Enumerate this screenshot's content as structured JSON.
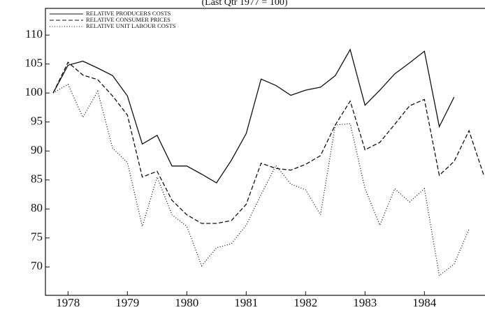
{
  "chart_data": {
    "type": "line",
    "title": "(Last Qtr 1977 = 100)",
    "x": [
      1977.75,
      1978.0,
      1978.25,
      1978.5,
      1978.75,
      1979.0,
      1979.25,
      1979.5,
      1979.75,
      1980.0,
      1980.25,
      1980.5,
      1980.75,
      1981.0,
      1981.25,
      1981.5,
      1981.75,
      1982.0,
      1982.25,
      1982.5,
      1982.75,
      1983.0,
      1983.25,
      1983.5,
      1983.75,
      1984.0,
      1984.25,
      1984.5,
      1984.75,
      1985.0
    ],
    "xlim": [
      1977.62,
      1985.02
    ],
    "xticks": [
      1978,
      1979,
      1980,
      1981,
      1982,
      1983,
      1984
    ],
    "ylim": [
      65.1,
      114.6
    ],
    "yticks": [
      70,
      75,
      80,
      85,
      90,
      95,
      100,
      105,
      110
    ],
    "legend": "top-left",
    "series": [
      {
        "name": "RELATIVE PRODUCERS COSTS",
        "color": "#111111",
        "dash": "solid",
        "values": [
          100,
          104.8,
          105.5,
          104.3,
          103,
          99.5,
          91.2,
          92.7,
          87.4,
          87.4,
          86,
          84.5,
          88.4,
          93,
          102.4,
          101.3,
          99.6,
          100.5,
          101,
          103,
          107.5,
          97.9,
          100.5,
          103.3,
          105.2,
          107.2,
          94.2,
          99.3,
          null,
          null
        ]
      },
      {
        "name": "RELATIVE CONSUMER PRICES",
        "color": "#111111",
        "dash": "dashed",
        "values": [
          100,
          105.3,
          103.1,
          102.3,
          99.5,
          96.2,
          85.5,
          86.5,
          81.5,
          79,
          77.5,
          77.5,
          78,
          80.8,
          87.9,
          87,
          86.7,
          87.7,
          89.2,
          94.5,
          98.6,
          90.2,
          91.5,
          94.6,
          97.8,
          98.9,
          85.8,
          88.2,
          93.5,
          85.8
        ]
      },
      {
        "name": "RELATIVE UNIT LABOUR COSTS",
        "color": "#111111",
        "dash": "dotted",
        "values": [
          100,
          101.5,
          95.8,
          100.3,
          90.5,
          88,
          77,
          85.5,
          79,
          77,
          70.2,
          73.3,
          74,
          77.2,
          82.5,
          87.5,
          84.3,
          83.3,
          79,
          94.5,
          94.7,
          83.5,
          77.2,
          83.5,
          81.2,
          83.5,
          68.5,
          70.5,
          76.5,
          null
        ]
      }
    ]
  }
}
